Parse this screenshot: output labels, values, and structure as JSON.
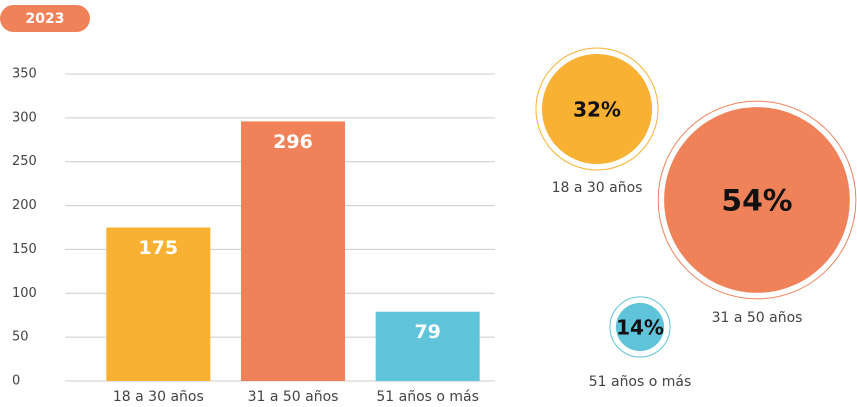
{
  "label": "2023",
  "chart_data": [
    {
      "type": "bar",
      "categories": [
        "18 a 30 años",
        "31 a 50 años",
        "51 años o más"
      ],
      "values": [
        175,
        296,
        79
      ],
      "colors": [
        "#f8b133",
        "#f0825a",
        "#5fc4da"
      ],
      "ylim": [
        0,
        350
      ],
      "yticks": [
        0,
        50,
        100,
        150,
        200,
        250,
        300,
        350
      ],
      "grid": true
    },
    {
      "type": "bubble",
      "categories": [
        "18 a 30 años",
        "31 a 50 años",
        "51 años o más"
      ],
      "values": [
        32,
        54,
        14
      ],
      "value_labels": [
        "32%",
        "54%",
        "14%"
      ],
      "colors": [
        "#f8b133",
        "#f0825a",
        "#5fc4da"
      ]
    }
  ]
}
